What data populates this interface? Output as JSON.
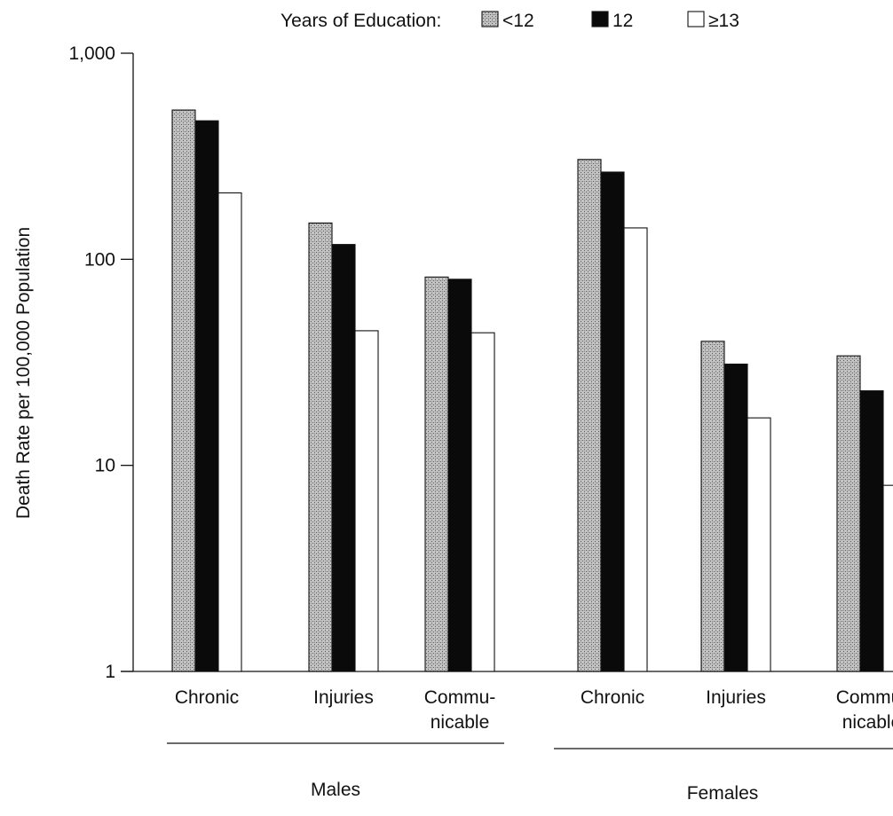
{
  "colors": {
    "axis": "#111111",
    "lt12": "#b3b3b3",
    "eq12": "#0a0a0a",
    "ge13": "#ffffff"
  },
  "chart_data": {
    "type": "bar",
    "scale": "log",
    "ylabel": "Death Rate per 100,000 Population",
    "ylim": [
      1,
      1000
    ],
    "yticks": [
      {
        "value": 1,
        "label": "1"
      },
      {
        "value": 10,
        "label": "10"
      },
      {
        "value": 100,
        "label": "100"
      },
      {
        "value": 1000,
        "label": "1,000"
      }
    ],
    "legend": {
      "title": "Years of Education:",
      "position": "top"
    },
    "categories": [
      {
        "label": [
          "Chronic"
        ],
        "group": "Males"
      },
      {
        "label": [
          "Injuries"
        ],
        "group": "Males"
      },
      {
        "label": [
          "Commu-",
          "nicable"
        ],
        "group": "Males"
      },
      {
        "label": [
          "Chronic"
        ],
        "group": "Females"
      },
      {
        "label": [
          "Injuries"
        ],
        "group": "Females"
      },
      {
        "label": [
          "Commu-",
          "nicable"
        ],
        "group": "Females"
      }
    ],
    "groups": [
      "Males",
      "Females"
    ],
    "series": [
      {
        "name": "<12",
        "pattern": "stipple",
        "color": "#b3b3b3",
        "values": [
          530,
          150,
          82,
          305,
          40,
          34
        ]
      },
      {
        "name": "12",
        "pattern": "solid",
        "color": "#0a0a0a",
        "values": [
          470,
          118,
          80,
          265,
          31,
          23
        ]
      },
      {
        "name": "≥13",
        "pattern": "outline",
        "color": "#ffffff",
        "values": [
          210,
          45,
          44,
          142,
          17,
          8
        ]
      }
    ],
    "grid": false
  }
}
